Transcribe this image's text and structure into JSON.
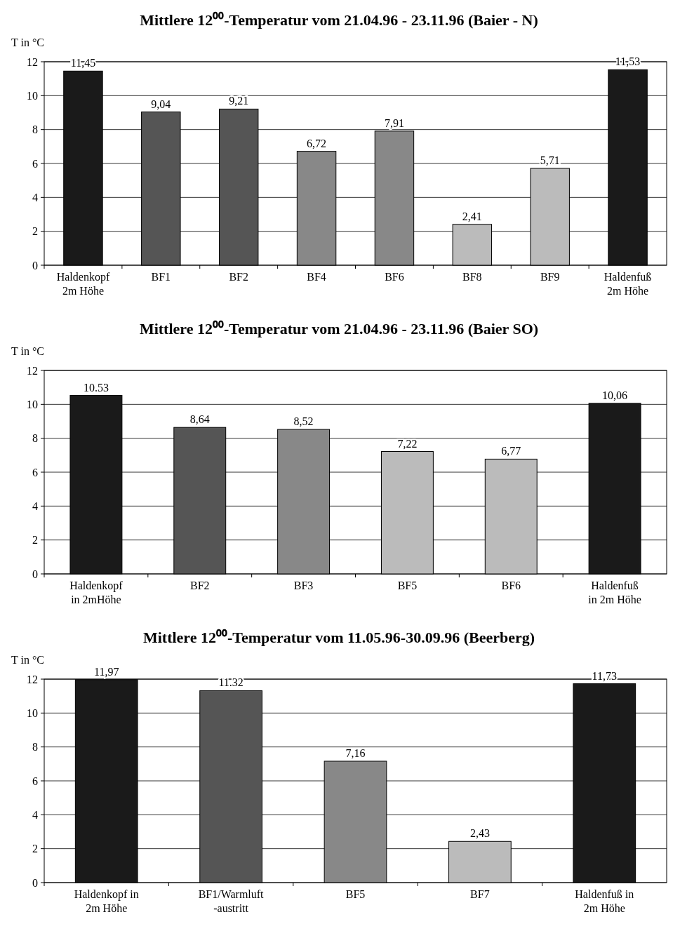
{
  "chart_data": [
    {
      "type": "bar",
      "title": "Mittlere 12⁰⁰-Temperatur vom 21.04.96 - 23.11.96 (Baier - N)",
      "ylabel": "T in °C",
      "categories": [
        "Haldenkopf\n2m Höhe",
        "BF1",
        "BF2",
        "BF4",
        "BF6",
        "BF8",
        "BF9",
        "Haldenfuß\n2m Höhe"
      ],
      "values": [
        11.45,
        9.04,
        9.21,
        6.72,
        7.91,
        2.41,
        5.71,
        11.53
      ],
      "value_labels": [
        "11,45",
        "9,04",
        "9,21",
        "6,72",
        "7,91",
        "2,41",
        "5,71",
        "11,53"
      ],
      "colors": [
        "#1a1a1a",
        "#555555",
        "#555555",
        "#888888",
        "#888888",
        "#bbbbbb",
        "#bbbbbb",
        "#1a1a1a"
      ],
      "ylim": [
        0,
        12
      ],
      "yticks": [
        0,
        2,
        4,
        6,
        8,
        10,
        12
      ],
      "grid": "y"
    },
    {
      "type": "bar",
      "title": "Mittlere 12⁰⁰-Temperatur vom 21.04.96 - 23.11.96 (Baier SO)",
      "ylabel": "T in °C",
      "categories": [
        "Haldenkopf\nin 2mHöhe",
        "BF2",
        "BF3",
        "BF5",
        "BF6",
        "Haldenfuß\nin 2m Höhe"
      ],
      "values": [
        10.53,
        8.64,
        8.52,
        7.22,
        6.77,
        10.06
      ],
      "value_labels": [
        "10.53",
        "8,64",
        "8,52",
        "7,22",
        "6,77",
        "10,06"
      ],
      "colors": [
        "#1a1a1a",
        "#555555",
        "#888888",
        "#bbbbbb",
        "#bbbbbb",
        "#1a1a1a"
      ],
      "ylim": [
        0,
        12
      ],
      "yticks": [
        0,
        2,
        4,
        6,
        8,
        10,
        12
      ],
      "grid": "y"
    },
    {
      "type": "bar",
      "title": "Mittlere 12⁰⁰-Temperatur vom 11.05.96-30.09.96 (Beerberg)",
      "ylabel": "T in °C",
      "categories": [
        "Haldenkopf in\n2m Höhe",
        "BF1/Warmluft\n-austritt",
        "BF5",
        "BF7",
        "Haldenfuß in\n2m Höhe"
      ],
      "values": [
        11.97,
        11.32,
        7.16,
        2.43,
        11.73
      ],
      "value_labels": [
        "11,97",
        "11.32",
        "7,16",
        "2,43",
        "11,73"
      ],
      "colors": [
        "#1a1a1a",
        "#555555",
        "#888888",
        "#bbbbbb",
        "#1a1a1a"
      ],
      "ylim": [
        0,
        12
      ],
      "yticks": [
        0,
        2,
        4,
        6,
        8,
        10,
        12
      ],
      "grid": "y"
    }
  ]
}
